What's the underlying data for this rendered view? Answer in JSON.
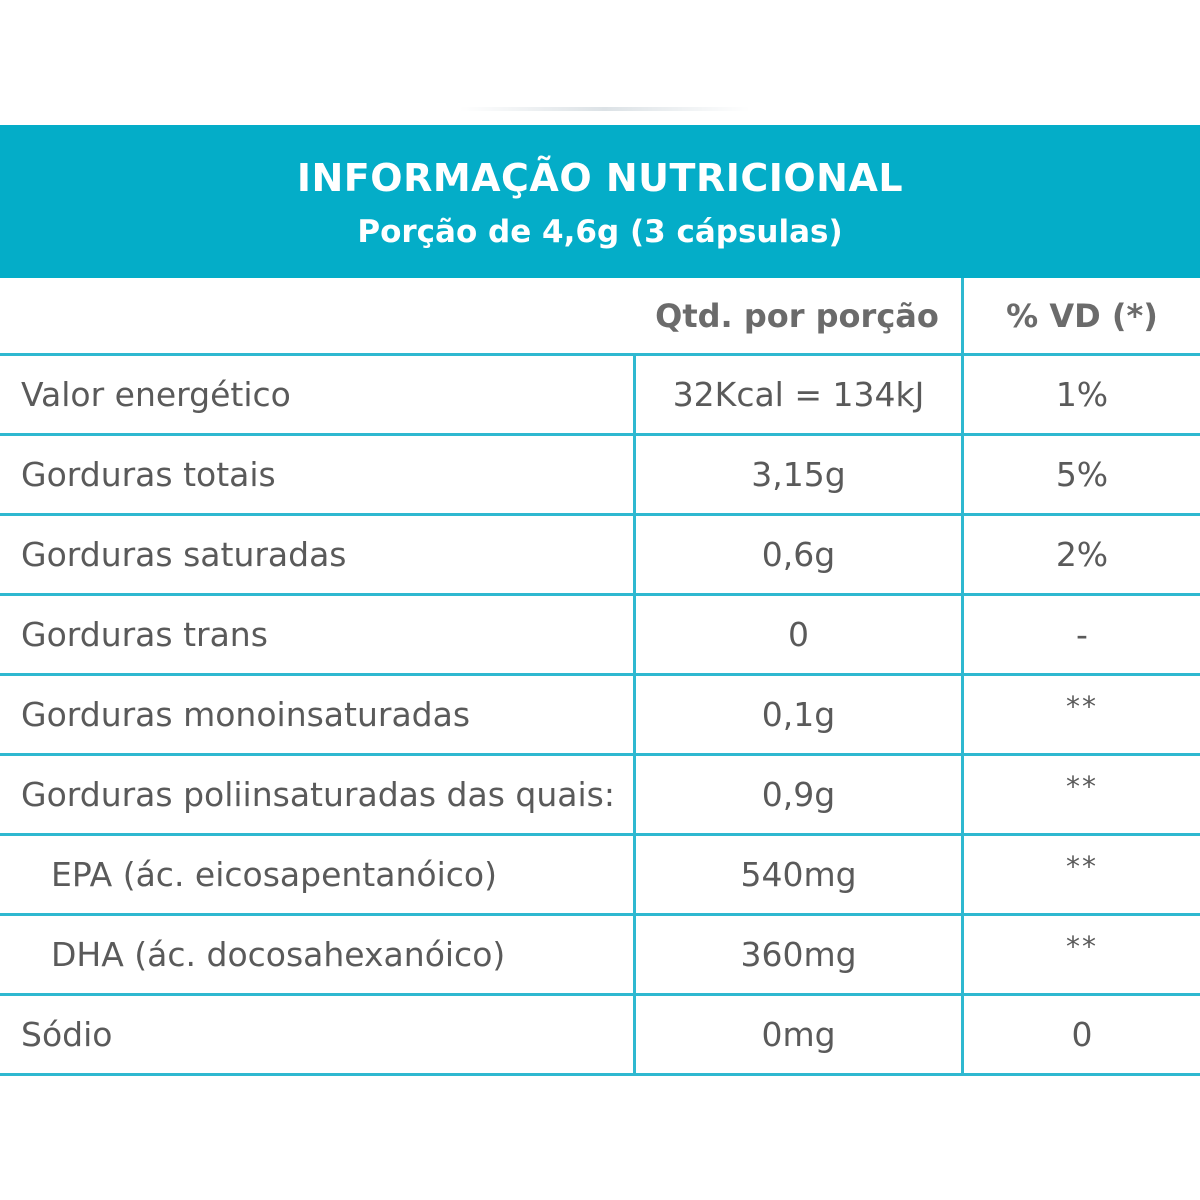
{
  "header": {
    "title": "INFORMAÇÃO NUTRICIONAL",
    "subtitle": "Porção de 4,6g (3 cápsulas)"
  },
  "columns": {
    "name": "",
    "qty": "Qtd. por porção",
    "vd": "% VD (*)"
  },
  "rows": [
    {
      "name": "Valor energético",
      "qty": "32Kcal = 134kJ",
      "vd": "1%"
    },
    {
      "name": "Gorduras totais",
      "qty": "3,15g",
      "vd": "5%"
    },
    {
      "name": "Gorduras saturadas",
      "qty": "0,6g",
      "vd": "2%"
    },
    {
      "name": "Gorduras trans",
      "qty": "0",
      "vd": "-"
    },
    {
      "name": "Gorduras monoinsaturadas",
      "qty": "0,1g",
      "vd": "**"
    },
    {
      "name": "Gorduras poliinsaturadas das quais:",
      "qty": "0,9g",
      "vd": "**"
    },
    {
      "name": "EPA (ác. eicosapentanóico)",
      "qty": "540mg",
      "vd": "**"
    },
    {
      "name": "DHA (ác. docosahexanóico)",
      "qty": "360mg",
      "vd": "**"
    },
    {
      "name": "Sódio",
      "qty": "0mg",
      "vd": "0"
    }
  ],
  "colors": {
    "header_bg": "#04adc8",
    "border": "#2fb8d0",
    "text": "#5a5a5a"
  }
}
